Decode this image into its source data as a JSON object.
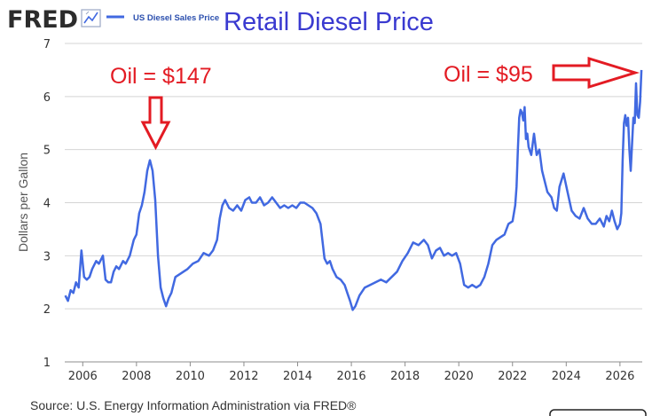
{
  "header": {
    "logo": "FRED",
    "legend_label": "US Diesel Sales Price",
    "title": "Retail Diesel Price"
  },
  "footer": {
    "source": "Source: U.S. Energy Information Administration via FRED®"
  },
  "annotations": [
    {
      "label": "Oil = $147",
      "points_to_year": 2008.6
    },
    {
      "label": "Oil = $95",
      "points_to_year": 2026.7
    }
  ],
  "colors": {
    "line": "#4169e1",
    "annotation": "#e31b23",
    "title": "#3a3ad0",
    "grid": "#d4d4d4"
  },
  "chart_data": {
    "type": "line",
    "title": "Retail Diesel Price",
    "xlabel": "",
    "ylabel": "Dollars per Gallon",
    "xlim": [
      2005.33,
      2026.83
    ],
    "ylim": [
      1,
      7
    ],
    "y_ticks": [
      1,
      2,
      3,
      4,
      5,
      6,
      7
    ],
    "x_ticks": [
      2006,
      2008,
      2010,
      2012,
      2014,
      2016,
      2018,
      2020,
      2022,
      2024,
      2026
    ],
    "x_tick_labels": [
      "2006",
      "2008",
      "2010",
      "2012",
      "2014",
      "2016",
      "2018",
      "2020",
      "2022",
      "2024",
      "2026"
    ],
    "grid": true,
    "legend": "top-left",
    "series": [
      {
        "name": "US Diesel Sales Price",
        "x": [
          2005.35,
          2005.45,
          2005.55,
          2005.65,
          2005.75,
          2005.85,
          2005.95,
          2006.05,
          2006.15,
          2006.25,
          2006.35,
          2006.5,
          2006.6,
          2006.75,
          2006.85,
          2006.95,
          2007.05,
          2007.15,
          2007.25,
          2007.35,
          2007.5,
          2007.6,
          2007.75,
          2007.9,
          2008.0,
          2008.1,
          2008.2,
          2008.3,
          2008.4,
          2008.5,
          2008.6,
          2008.7,
          2008.8,
          2008.9,
          2009.0,
          2009.1,
          2009.2,
          2009.3,
          2009.45,
          2009.6,
          2009.75,
          2009.9,
          2010.1,
          2010.3,
          2010.5,
          2010.7,
          2010.85,
          2011.0,
          2011.1,
          2011.2,
          2011.3,
          2011.45,
          2011.6,
          2011.75,
          2011.9,
          2012.05,
          2012.2,
          2012.3,
          2012.45,
          2012.6,
          2012.75,
          2012.9,
          2013.05,
          2013.2,
          2013.35,
          2013.5,
          2013.65,
          2013.8,
          2013.95,
          2014.1,
          2014.25,
          2014.4,
          2014.55,
          2014.7,
          2014.85,
          2015.0,
          2015.1,
          2015.2,
          2015.3,
          2015.45,
          2015.6,
          2015.75,
          2015.85,
          2015.95,
          2016.05,
          2016.15,
          2016.3,
          2016.5,
          2016.7,
          2016.9,
          2017.1,
          2017.3,
          2017.5,
          2017.7,
          2017.9,
          2018.1,
          2018.3,
          2018.5,
          2018.7,
          2018.85,
          2019.0,
          2019.15,
          2019.3,
          2019.45,
          2019.6,
          2019.75,
          2019.9,
          2020.05,
          2020.2,
          2020.35,
          2020.5,
          2020.65,
          2020.8,
          2020.95,
          2021.1,
          2021.25,
          2021.4,
          2021.55,
          2021.7,
          2021.85,
          2022.0,
          2022.1,
          2022.15,
          2022.2,
          2022.25,
          2022.3,
          2022.35,
          2022.4,
          2022.45,
          2022.5,
          2022.55,
          2022.6,
          2022.7,
          2022.8,
          2022.9,
          2023.0,
          2023.1,
          2023.2,
          2023.3,
          2023.45,
          2023.55,
          2023.65,
          2023.75,
          2023.9,
          2024.05,
          2024.2,
          2024.35,
          2024.5,
          2024.65,
          2024.8,
          2024.95,
          2025.1,
          2025.25,
          2025.4,
          2025.5,
          2025.6,
          2025.7,
          2025.8,
          2025.9,
          2026.0,
          2026.05,
          2026.1,
          2026.15,
          2026.2,
          2026.25,
          2026.3,
          2026.35,
          2026.4,
          2026.5,
          2026.55,
          2026.6,
          2026.65,
          2026.7,
          2026.75,
          2026.8
        ],
        "y": [
          2.25,
          2.15,
          2.35,
          2.3,
          2.5,
          2.4,
          3.1,
          2.6,
          2.55,
          2.6,
          2.75,
          2.9,
          2.85,
          3.0,
          2.55,
          2.5,
          2.5,
          2.7,
          2.8,
          2.75,
          2.9,
          2.85,
          3.0,
          3.3,
          3.4,
          3.8,
          3.95,
          4.2,
          4.6,
          4.8,
          4.6,
          4.05,
          3.0,
          2.4,
          2.2,
          2.05,
          2.2,
          2.3,
          2.6,
          2.65,
          2.7,
          2.75,
          2.85,
          2.9,
          3.05,
          3.0,
          3.1,
          3.3,
          3.7,
          3.95,
          4.05,
          3.9,
          3.85,
          3.95,
          3.85,
          4.05,
          4.1,
          4.0,
          4.0,
          4.1,
          3.95,
          4.0,
          4.1,
          4.0,
          3.9,
          3.95,
          3.9,
          3.95,
          3.9,
          4.0,
          4.0,
          3.95,
          3.9,
          3.8,
          3.6,
          2.95,
          2.85,
          2.9,
          2.75,
          2.6,
          2.55,
          2.45,
          2.3,
          2.15,
          1.98,
          2.05,
          2.25,
          2.4,
          2.45,
          2.5,
          2.55,
          2.5,
          2.6,
          2.7,
          2.9,
          3.05,
          3.25,
          3.2,
          3.3,
          3.2,
          2.95,
          3.1,
          3.15,
          3.0,
          3.05,
          3.0,
          3.05,
          2.85,
          2.45,
          2.4,
          2.45,
          2.4,
          2.45,
          2.6,
          2.85,
          3.2,
          3.3,
          3.35,
          3.4,
          3.6,
          3.65,
          3.95,
          4.3,
          5.0,
          5.6,
          5.75,
          5.7,
          5.55,
          5.8,
          5.2,
          5.3,
          5.05,
          4.9,
          5.3,
          4.9,
          5.0,
          4.6,
          4.4,
          4.2,
          4.1,
          3.9,
          3.85,
          4.3,
          4.55,
          4.2,
          3.85,
          3.75,
          3.7,
          3.9,
          3.7,
          3.6,
          3.6,
          3.7,
          3.55,
          3.75,
          3.65,
          3.85,
          3.65,
          3.5,
          3.6,
          3.8,
          4.8,
          5.5,
          5.65,
          5.45,
          5.6,
          5.0,
          4.6,
          5.6,
          5.5,
          6.25,
          5.65,
          5.6,
          5.9,
          6.5
        ]
      }
    ]
  }
}
